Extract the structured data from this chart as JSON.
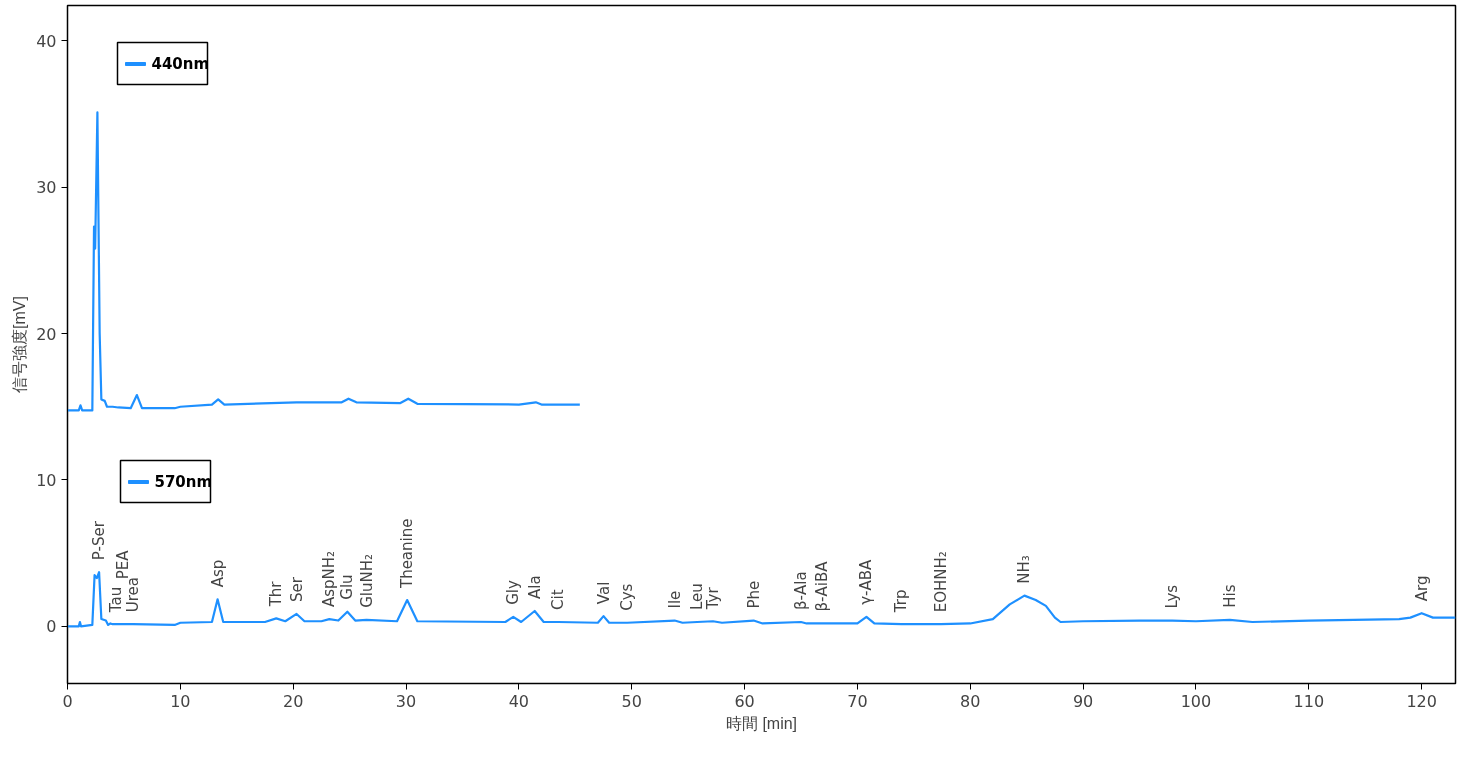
{
  "chart_data": {
    "type": "line",
    "xlabel": "時間 [min]",
    "ylabel": "信号強度[mV]",
    "xlim": [
      0,
      123
    ],
    "ylim": [
      -3.9,
      42.4
    ],
    "xticks": [
      0,
      10,
      20,
      30,
      40,
      50,
      60,
      70,
      80,
      90,
      100,
      110,
      120
    ],
    "yticks": [
      0,
      10,
      20,
      30,
      40
    ],
    "grid": false,
    "legend": "top left",
    "marker": "none",
    "line_style": "solid",
    "series": [
      {
        "name": "440nm",
        "color": "#1e90ff",
        "x": [
          0,
          1.0,
          1.15,
          1.3,
          2.2,
          2.35,
          2.45,
          2.65,
          2.85,
          3.0,
          3.3,
          3.5,
          4.0,
          4.5,
          5.6,
          6.15,
          6.6,
          9.5,
          10,
          12.8,
          13.35,
          13.9,
          20.3,
          24.3,
          24.9,
          25.6,
          29.5,
          30.2,
          31,
          40,
          41.5,
          42,
          45.4
        ],
        "values": [
          14.75,
          14.75,
          15.1,
          14.75,
          14.75,
          27.3,
          25.8,
          35.1,
          20,
          15.5,
          15.4,
          15.0,
          15.0,
          14.95,
          14.9,
          15.8,
          14.9,
          14.9,
          15.0,
          15.15,
          15.5,
          15.15,
          15.3,
          15.3,
          15.55,
          15.3,
          15.25,
          15.55,
          15.2,
          15.15,
          15.3,
          15.15,
          15.15
        ]
      },
      {
        "name": "570nm",
        "color": "#1e90ff",
        "x": [
          0,
          1.0,
          1.1,
          1.2,
          2.2,
          2.4,
          2.6,
          2.8,
          3.0,
          3.4,
          3.6,
          3.8,
          4,
          4.3,
          4.9,
          5.8,
          9.5,
          10,
          12.8,
          13.3,
          13.8,
          17.5,
          18.5,
          19.3,
          20.3,
          21,
          22.5,
          23.2,
          24,
          24.8,
          25.5,
          26.5,
          29.2,
          30.1,
          31,
          38.8,
          39.5,
          40.2,
          41.4,
          42.2,
          43.5,
          47,
          47.5,
          48,
          49.6,
          53.8,
          54.5,
          55.8,
          57.2,
          58,
          60.8,
          61.6,
          65,
          65.5,
          66.9,
          70,
          70.8,
          71.5,
          73.9,
          75,
          77.4,
          80,
          82,
          83.5,
          84.8,
          85.8,
          86.7,
          87.5,
          88,
          90,
          95,
          97.9,
          100,
          103,
          105,
          110,
          118,
          119,
          120,
          121,
          123
        ],
        "values": [
          0,
          0,
          0.3,
          0,
          0.1,
          3.5,
          3.3,
          3.7,
          0.5,
          0.4,
          0.1,
          0.2,
          0.15,
          0.15,
          0.15,
          0.15,
          0.1,
          0.25,
          0.3,
          1.85,
          0.3,
          0.3,
          0.55,
          0.35,
          0.85,
          0.35,
          0.35,
          0.5,
          0.4,
          1.0,
          0.4,
          0.45,
          0.35,
          1.8,
          0.35,
          0.3,
          0.65,
          0.3,
          1.05,
          0.3,
          0.3,
          0.25,
          0.7,
          0.25,
          0.25,
          0.4,
          0.25,
          0.3,
          0.35,
          0.25,
          0.4,
          0.2,
          0.3,
          0.2,
          0.2,
          0.2,
          0.65,
          0.2,
          0.15,
          0.15,
          0.15,
          0.2,
          0.5,
          1.5,
          2.1,
          1.8,
          1.4,
          0.6,
          0.3,
          0.35,
          0.4,
          0.4,
          0.35,
          0.45,
          0.3,
          0.4,
          0.5,
          0.6,
          0.9,
          0.6,
          0.6
        ]
      }
    ],
    "annotations": [
      {
        "text": "P-Ser",
        "x": 2.8,
        "y": 3.7
      },
      {
        "text": "Tau",
        "x": 4.3,
        "y": 0.15
      },
      {
        "text": "PEA",
        "x": 4.9,
        "y": 0.15
      },
      {
        "text": "Urea",
        "x": 5.8,
        "y": 0.15
      },
      {
        "text": "Asp",
        "x": 13.3,
        "y": 1.85
      },
      {
        "text": "Thr",
        "x": 18.5,
        "y": 0.55
      },
      {
        "text": "Ser",
        "x": 20.3,
        "y": 0.85
      },
      {
        "text": "AspNH₂",
        "x": 23.2,
        "y": 0.5
      },
      {
        "text": "Glu",
        "x": 24.8,
        "y": 1.0
      },
      {
        "text": "GluNH₂",
        "x": 26.5,
        "y": 0.45
      },
      {
        "text": "Theanine",
        "x": 30.1,
        "y": 1.8
      },
      {
        "text": "Gly",
        "x": 39.5,
        "y": 0.65
      },
      {
        "text": "Ala",
        "x": 41.4,
        "y": 1.05
      },
      {
        "text": "Cit",
        "x": 43.5,
        "y": 0.3
      },
      {
        "text": "Val",
        "x": 47.5,
        "y": 0.7
      },
      {
        "text": "Cys",
        "x": 49.6,
        "y": 0.25
      },
      {
        "text": "Ile",
        "x": 53.8,
        "y": 0.4
      },
      {
        "text": "Leu",
        "x": 55.8,
        "y": 0.3
      },
      {
        "text": "Tyr",
        "x": 57.2,
        "y": 0.35
      },
      {
        "text": "Phe",
        "x": 60.8,
        "y": 0.4
      },
      {
        "text": "β-Ala",
        "x": 65,
        "y": 0.3
      },
      {
        "text": "β-AiBA",
        "x": 66.9,
        "y": 0.2
      },
      {
        "text": "γ-ABA",
        "x": 70.8,
        "y": 0.65
      },
      {
        "text": "Trp",
        "x": 73.9,
        "y": 0.15
      },
      {
        "text": "EOHNH₂",
        "x": 77.4,
        "y": 0.15
      },
      {
        "text": "NH₃",
        "x": 84.8,
        "y": 2.1
      },
      {
        "text": "Lys",
        "x": 97.9,
        "y": 0.4
      },
      {
        "text": "His",
        "x": 103,
        "y": 0.45
      },
      {
        "text": "Arg",
        "x": 120,
        "y": 0.9
      }
    ]
  }
}
